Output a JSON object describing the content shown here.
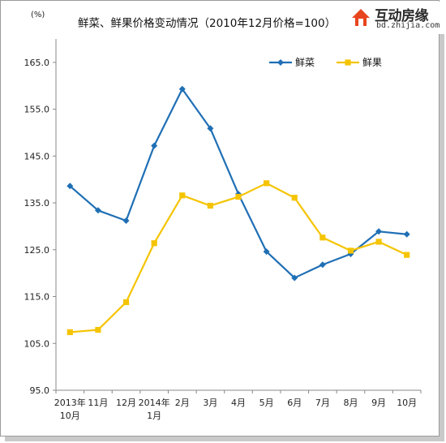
{
  "chart_data": {
    "type": "line",
    "title": "鲜菜、鲜果价格变动情况（2010年12月价格=100）",
    "unit_label": "(%)",
    "categories": [
      [
        "2013年",
        "10月"
      ],
      [
        "11月"
      ],
      [
        "12月"
      ],
      [
        "2014年",
        "1月"
      ],
      [
        "2月"
      ],
      [
        "3月"
      ],
      [
        "4月"
      ],
      [
        "5月"
      ],
      [
        "6月"
      ],
      [
        "7月"
      ],
      [
        "8月"
      ],
      [
        "9月"
      ],
      [
        "10月"
      ]
    ],
    "yticks": [
      "95.0",
      "105.0",
      "115.0",
      "125.0",
      "135.0",
      "145.0",
      "155.0",
      "165.0"
    ],
    "ylim": [
      95,
      170
    ],
    "grid": false,
    "legend_position": "top-right",
    "series": [
      {
        "name": "鲜菜",
        "color": "#1f6fb5",
        "marker": "diamond",
        "values": [
          138.6,
          133.4,
          131.2,
          147.2,
          159.3,
          150.9,
          136.9,
          124.6,
          119.0,
          121.8,
          124.1,
          128.9,
          128.3
        ]
      },
      {
        "name": "鲜果",
        "color": "#f5c400",
        "marker": "square",
        "values": [
          107.4,
          107.9,
          113.8,
          126.4,
          136.6,
          134.4,
          136.3,
          139.2,
          136.1,
          127.6,
          124.8,
          126.7,
          123.9
        ]
      }
    ]
  },
  "watermark": {
    "name": "互动房缘",
    "url": "bd.zhijia.com",
    "color": "#e8451e"
  }
}
